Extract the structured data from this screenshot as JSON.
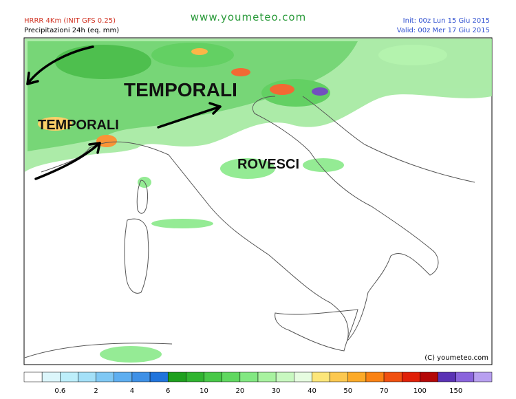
{
  "header": {
    "model": "HRRR 4Km (INIT GFS 0.25)",
    "product": "Precipitazioni 24h (eq. mm)",
    "site": "www.youmeteo.com",
    "init": "Init: 00z Lun  15 Giu 2015",
    "valid": "Valid: 00z Mer  17 Giu 2015"
  },
  "annotations": [
    "TEMPORALI",
    "TEMPORALI",
    "ROVESCI"
  ],
  "copyright": "(C) youmeteo.com",
  "legend": {
    "labels": [
      "0.6",
      "2",
      "4",
      "6",
      "10",
      "20",
      "30",
      "40",
      "50",
      "70",
      "100",
      "150"
    ],
    "colors": [
      "#ffffff",
      "#dcf6fb",
      "#bdeefa",
      "#a4e0f8",
      "#80c8f4",
      "#5eaef0",
      "#3e90e6",
      "#2074dc",
      "#1ea01e",
      "#30b430",
      "#48c848",
      "#60d860",
      "#82e882",
      "#a8f2a0",
      "#c8f8c0",
      "#e6fce0",
      "#fce67a",
      "#fcc850",
      "#fcaa28",
      "#fa8214",
      "#f05010",
      "#e02008",
      "#b40808",
      "#5a32b4",
      "#8a64dc",
      "#b8a0f0"
    ]
  }
}
